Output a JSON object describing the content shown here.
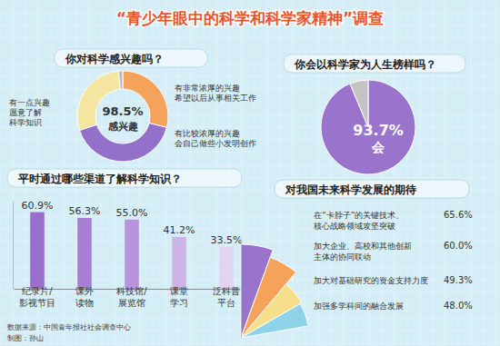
{
  "title": "“青少年眼中的科学和科学家精神”调查",
  "source": "数据来源：中国青年报社社会调查中心",
  "credit": "制图：孙山",
  "chart_data": [
    {
      "type": "donut",
      "title": "你对科学感兴趣吗？",
      "categories": [
        "有非常浓厚的兴趣\n希望以后从事相关工作",
        "有比较浓厚的兴趣\n会自己做些小发明创作",
        "有一点兴趣\n愿意了解\n科学知识",
        null
      ],
      "values": [
        29,
        41,
        28.5,
        1.5
      ],
      "colors": [
        "#f5a35a",
        "#9370c9",
        "#f4e6a0",
        "#bdbdbd"
      ],
      "annotations": [
        "98.5%",
        "感兴趣"
      ]
    },
    {
      "type": "pie",
      "title": "你会以科学家为人生榜样吗？",
      "categories": [
        "会",
        null
      ],
      "values": [
        93.7,
        6.3
      ],
      "value_labels": [
        "93.7%",
        null
      ],
      "colors": [
        "#9a73cc",
        "#c4c4c4"
      ],
      "data_labels": true
    },
    {
      "type": "bar",
      "title": "平时通过哪些渠道了解科学知识？",
      "categories": [
        "纪录片/\n影视节目",
        "课外\n读物",
        "科技馆/\n展览馆",
        "课堂\n学习",
        "泛科普\n平台"
      ],
      "values": [
        60.9,
        56.3,
        55.0,
        41.2,
        33.5
      ],
      "value_labels": [
        "60.9%",
        "56.3%",
        "55.0%",
        "41.2%",
        "33.5%"
      ],
      "colors": [
        "#9a6fcb",
        "#a97fd4",
        "#b994dc",
        "#cdb3e6",
        "#e2d3f0"
      ],
      "ylim": [
        0,
        70
      ],
      "yticks": [],
      "tick_labels": "x",
      "data_labels": true
    },
    {
      "type": "radial_bar",
      "title": "对我国未来科学发展的期待",
      "categories": [
        "在“卡脖子”的关键技术、\n核心战略领域攻坚突破",
        "加大企业、高校和其他创新\n主体的协同联动",
        "加大对基础研究的资金支持力度",
        "加强多学科间的融合发展"
      ],
      "values": [
        65.6,
        60.0,
        49.3,
        48.0
      ],
      "value_labels": [
        "65.6%",
        "60.0%",
        "49.3%",
        "48.0%"
      ],
      "colors": [
        "#9a73cc",
        "#f5a35a",
        "#f6de8a",
        "#8fd3ea"
      ],
      "ylim": [
        0,
        70
      ],
      "yticks": [],
      "tick_labels": false,
      "data_labels": true
    }
  ]
}
